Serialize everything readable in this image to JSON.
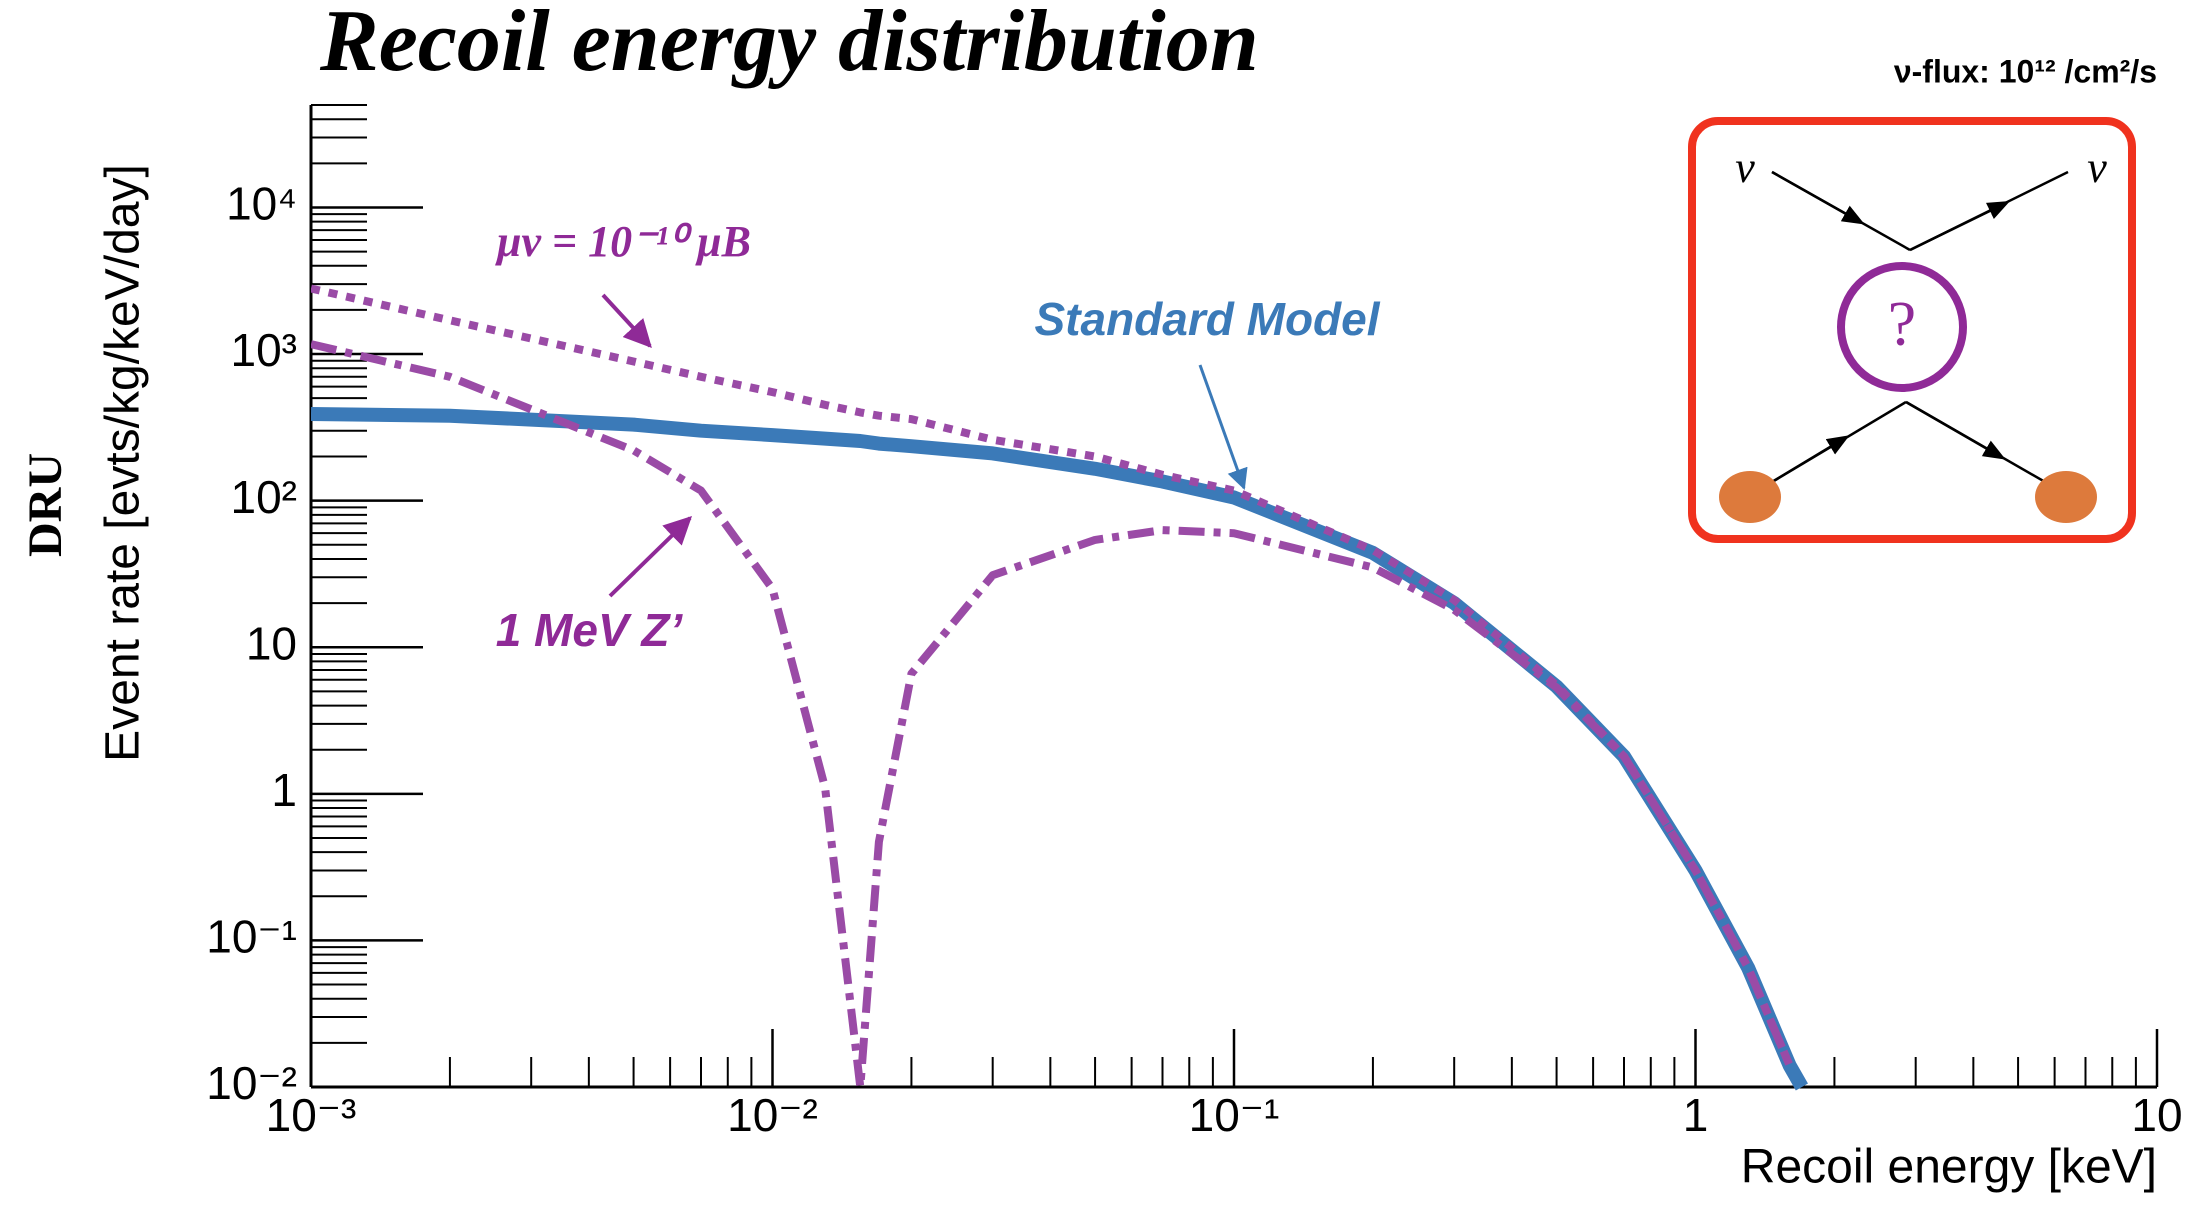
{
  "chart_data": {
    "type": "line",
    "title": "Recoil energy distribution",
    "subtitle": "ν-flux: 10¹² /cm²/s",
    "x_label": "Recoil energy [keV]",
    "y_label": "Event rate [evts/kg/keV/day]",
    "y_label_unit": "DRU",
    "log_x": true,
    "log_y": true,
    "x": [
      0.001,
      0.002,
      0.005,
      0.007,
      0.01,
      0.013,
      0.0155,
      0.017,
      0.02,
      0.03,
      0.05,
      0.07,
      0.1,
      0.2,
      0.3,
      0.5,
      0.7,
      1,
      1.3,
      1.6,
      1.7
    ],
    "series": [
      {
        "name": "Standard Model",
        "color": "#3b7ab8",
        "style": "solid",
        "values": [
          390,
          380,
          330,
          300,
          280,
          265,
          255,
          245,
          235,
          210,
          165,
          135,
          105,
          44,
          20,
          5.4,
          1.8,
          0.3,
          0.065,
          0.014,
          0.01
        ]
      },
      {
        "name": "μν = 10⁻¹⁰ μB",
        "color": "#9a4ba6",
        "style": "dotted",
        "values": [
          2800,
          1700,
          890,
          700,
          550,
          450,
          400,
          380,
          360,
          260,
          200,
          150,
          117,
          46,
          21,
          5.5,
          1.8,
          0.3,
          0.065,
          0.014,
          null
        ]
      },
      {
        "name": "1 MeV Z’",
        "color": "#9a4ba6",
        "style": "dashdot",
        "values": [
          1170,
          700,
          220,
          117,
          25,
          1.1,
          0.01,
          0.47,
          6.6,
          31,
          54,
          63,
          60,
          35,
          18,
          5.3,
          1.8,
          0.3,
          0.065,
          0.014,
          null
        ]
      }
    ],
    "xlim": [
      0.001,
      10
    ],
    "ylim": [
      0.01,
      50000
    ],
    "xticks": [
      {
        "value": 0.001,
        "label": "10⁻³"
      },
      {
        "value": 0.01,
        "label": "10⁻²"
      },
      {
        "value": 0.1,
        "label": "10⁻¹"
      },
      1,
      10
    ],
    "yticks": [
      {
        "value": 0.01,
        "label": "10⁻²"
      },
      {
        "value": 0.1,
        "label": "10⁻¹"
      },
      1,
      10,
      {
        "value": 100,
        "label": "10²"
      },
      {
        "value": 1000,
        "label": "10³"
      },
      {
        "value": 10000,
        "label": "10⁴"
      }
    ],
    "inset": {
      "in": "ν",
      "out": "ν",
      "vertex": "?"
    }
  }
}
